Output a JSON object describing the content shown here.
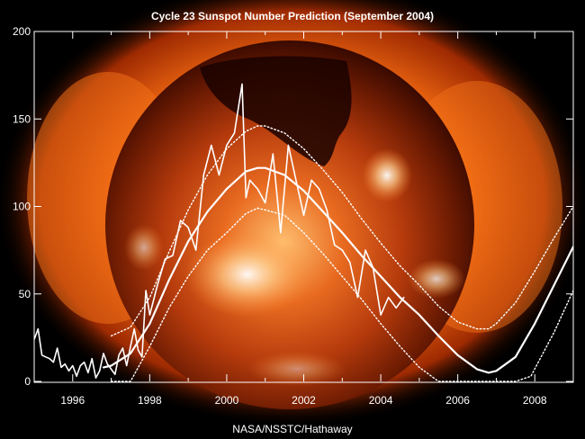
{
  "chart_data": {
    "type": "line",
    "title": "Cycle 23 Sunspot Number Prediction (September 2004)",
    "credit": "NASA/NSSTC/Hathaway",
    "background": "Solar X-ray image of the Sun behind the plot",
    "xlim": [
      1995.0,
      2009.0
    ],
    "ylim": [
      0,
      200
    ],
    "x_ticks": [
      1996,
      1998,
      2000,
      2002,
      2004,
      2006,
      2008
    ],
    "y_ticks": [
      0,
      50,
      100,
      150,
      200
    ],
    "grid": false,
    "line_color": "#ffffff",
    "series": [
      {
        "style": "monthly",
        "x": [
          1995.0,
          1995.1,
          1995.2,
          1995.3,
          1995.4,
          1995.5,
          1995.6,
          1995.7,
          1995.8,
          1995.9,
          1996.0,
          1996.1,
          1996.2,
          1996.3,
          1996.4,
          1996.5,
          1996.6,
          1996.7,
          1996.8,
          1996.9,
          1997.0,
          1997.1,
          1997.2,
          1997.3,
          1997.4,
          1997.5,
          1997.6,
          1997.7,
          1997.8,
          1997.9,
          1998.0,
          1998.2,
          1998.4,
          1998.6,
          1998.8,
          1999.0,
          1999.2,
          1999.4,
          1999.6,
          1999.8,
          2000.0,
          2000.2,
          2000.4,
          2000.5,
          2000.6,
          2000.8,
          2001.0,
          2001.2,
          2001.4,
          2001.6,
          2001.8,
          2002.0,
          2002.2,
          2002.4,
          2002.6,
          2002.8,
          2003.0,
          2003.2,
          2003.4,
          2003.6,
          2003.8,
          2004.0,
          2004.2,
          2004.4,
          2004.6
        ],
        "y": [
          24,
          30,
          15,
          14,
          13,
          11,
          19,
          8,
          10,
          6,
          9,
          3,
          9,
          11,
          5,
          13,
          2,
          6,
          16,
          10,
          7,
          4,
          15,
          19,
          9,
          20,
          30,
          18,
          14,
          52,
          38,
          55,
          70,
          72,
          92,
          88,
          75,
          118,
          135,
          118,
          135,
          142,
          170,
          105,
          115,
          110,
          102,
          130,
          85,
          135,
          115,
          95,
          115,
          110,
          98,
          78,
          75,
          68,
          48,
          75,
          65,
          38,
          48,
          42,
          48
        ]
      },
      {
        "style": "smoothed",
        "x": [
          1996.8,
          1997.0,
          1997.5,
          1998.0,
          1998.5,
          1999.0,
          1999.5,
          2000.0,
          2000.5,
          2000.8,
          2001.0,
          2001.5,
          2002.0,
          2002.5,
          2003.0,
          2003.5,
          2004.0,
          2004.5,
          2005.0,
          2005.5,
          2006.0,
          2006.5,
          2006.8,
          2007.0,
          2007.5,
          2008.0,
          2008.5,
          2009.0
        ],
        "y": [
          8,
          9,
          16,
          33,
          58,
          80,
          97,
          110,
          120,
          122,
          122,
          118,
          109,
          97,
          85,
          72,
          60,
          48,
          38,
          26,
          15,
          7,
          5,
          6,
          14,
          33,
          55,
          77
        ]
      },
      {
        "style": "upper-bound",
        "x": [
          1997.0,
          1997.5,
          1998.0,
          1998.5,
          1999.0,
          1999.5,
          2000.0,
          2000.5,
          2000.8,
          2001.0,
          2001.5,
          2002.0,
          2002.5,
          2003.0,
          2003.5,
          2004.0,
          2004.5,
          2005.0,
          2005.5,
          2006.0,
          2006.5,
          2006.8,
          2007.0,
          2007.5,
          2008.0,
          2008.5,
          2009.0
        ],
        "y": [
          26,
          31,
          48,
          74,
          98,
          118,
          133,
          143,
          146,
          146,
          142,
          133,
          121,
          108,
          93,
          79,
          66,
          55,
          43,
          34,
          30,
          30,
          33,
          45,
          63,
          82,
          100
        ]
      },
      {
        "style": "lower-bound",
        "x": [
          1997.0,
          1997.5,
          1998.0,
          1998.5,
          1999.0,
          1999.5,
          2000.0,
          2000.5,
          2000.8,
          2001.0,
          2001.5,
          2002.0,
          2002.5,
          2003.0,
          2003.5,
          2004.0,
          2004.5,
          2005.0,
          2005.5,
          2006.0,
          2006.5,
          2007.0,
          2007.5,
          2007.9,
          2008.5,
          2009.0
        ],
        "y": [
          0,
          0,
          20,
          42,
          60,
          75,
          85,
          96,
          99,
          98,
          95,
          85,
          73,
          60,
          47,
          33,
          20,
          8,
          0,
          0,
          0,
          0,
          0,
          3,
          28,
          52
        ]
      }
    ]
  }
}
